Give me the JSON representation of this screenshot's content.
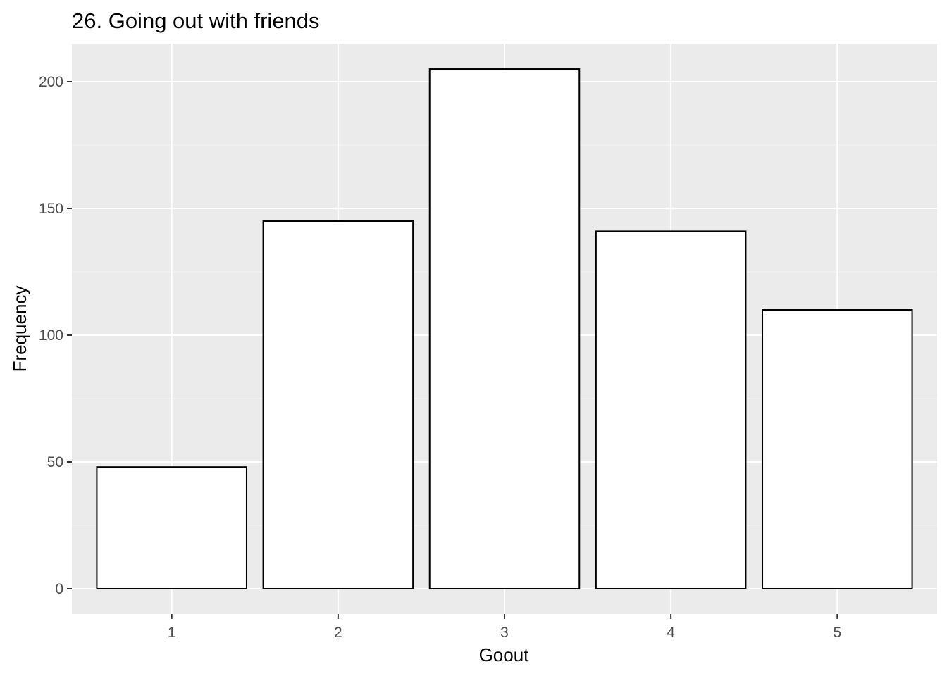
{
  "chart_data": {
    "type": "bar",
    "title": "26. Going out with friends",
    "xlabel": "Goout",
    "ylabel": "Frequency",
    "categories": [
      "1",
      "2",
      "3",
      "4",
      "5"
    ],
    "values": [
      48,
      145,
      205,
      141,
      110
    ],
    "ylim": [
      -10,
      215
    ],
    "yticks": [
      0,
      50,
      100,
      150,
      200
    ],
    "grid": true,
    "legend": "none",
    "colors": {
      "panel_background": "#ebebeb",
      "grid_major": "#ffffff",
      "grid_minor": "#f5f5f5",
      "bar_fill": "#ffffff",
      "bar_stroke": "#000000",
      "tick_text": "#4d4d4d",
      "tick_mark": "#333333"
    }
  }
}
